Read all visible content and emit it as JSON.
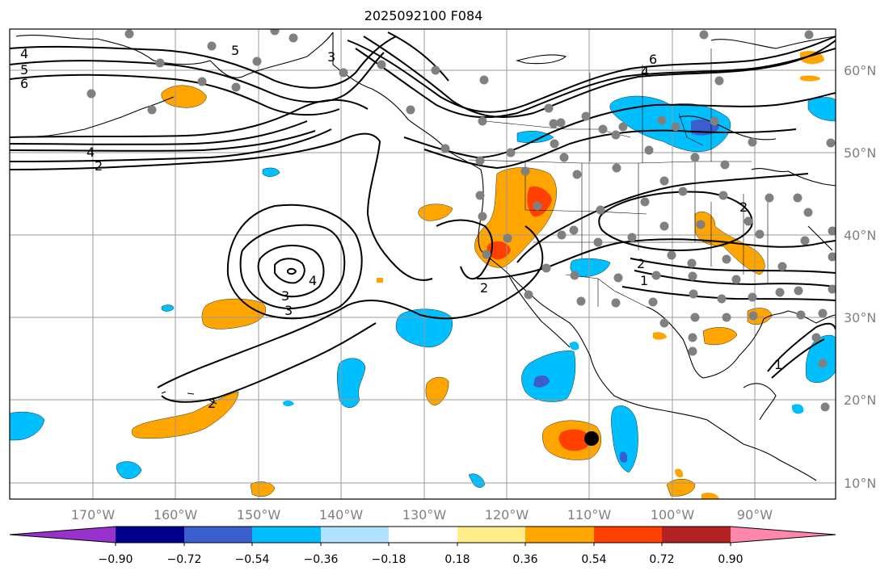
{
  "title": "2025092100 F084",
  "lat_labels": [
    "60°N",
    "50°N",
    "40°N",
    "30°N",
    "20°N",
    "10°N"
  ],
  "lon_labels": [
    "170°W",
    "160°W",
    "150°W",
    "140°W",
    "130°W",
    "120°W",
    "110°W",
    "100°W",
    "90°W"
  ],
  "colorbar": {
    "colors": [
      "#9932CC",
      "#00008B",
      "#3A5FCD",
      "#00BFFF",
      "#B0E2FF",
      "#FFFFFF",
      "#FFEC8B",
      "#FFA500",
      "#FF4000",
      "#B22222",
      "#FF88AA"
    ],
    "tick_labels": [
      "−0.90",
      "−0.72",
      "−0.54",
      "−0.36",
      "−0.18",
      "0.18",
      "0.36",
      "0.54",
      "0.72",
      "0.90"
    ]
  },
  "contour_labels": [
    "4",
    "5",
    "6",
    "3",
    "5",
    "6",
    "4",
    "4",
    "2",
    "3",
    "4",
    "3",
    "2",
    "2",
    "2",
    "1",
    "2",
    "1"
  ]
}
